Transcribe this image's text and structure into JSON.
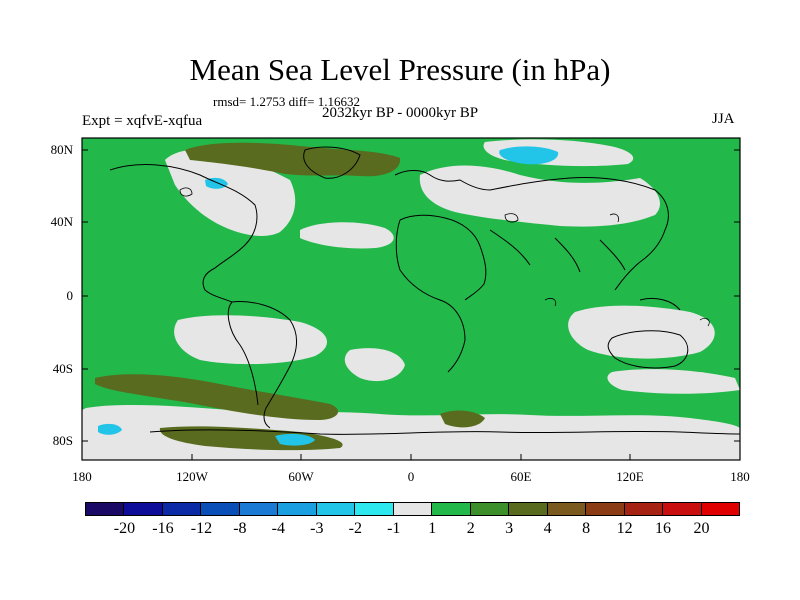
{
  "header": {
    "title": "Mean Sea Level Pressure (in hPa)",
    "stats": "rmsd= 1.2753 diff= 1.16632",
    "experiment": "Expt = xqfvE-xqfua",
    "period": "2032kyr BP - 0000kyr BP",
    "season": "JJA"
  },
  "axes": {
    "lat_ticks": [
      "80N",
      "40N",
      "0",
      "40S",
      "80S"
    ],
    "lon_ticks": [
      "180",
      "120W",
      "60W",
      "0",
      "60E",
      "120E",
      "180"
    ]
  },
  "colorbar": {
    "labels": [
      "-20",
      "-16",
      "-12",
      "-8",
      "-4",
      "-3",
      "-2",
      "-1",
      "1",
      "2",
      "3",
      "4",
      "8",
      "12",
      "16",
      "20"
    ],
    "colors": [
      "#1a0a66",
      "#0d0d99",
      "#0a2aa6",
      "#0a4fb8",
      "#1a7ad4",
      "#1a9fe0",
      "#22c4e8",
      "#2ee8f0",
      "#e6e6e6",
      "#22b84a",
      "#3c8f2a",
      "#596b1e",
      "#7a5a1e",
      "#8c3c14",
      "#a62212",
      "#c80e0e",
      "#e00000"
    ]
  },
  "colors": {
    "background_anomaly": "#22b84a",
    "neutral": "#e6e6e6",
    "positive_3_4": "#596b1e",
    "negative_2_3": "#22c4e8"
  }
}
